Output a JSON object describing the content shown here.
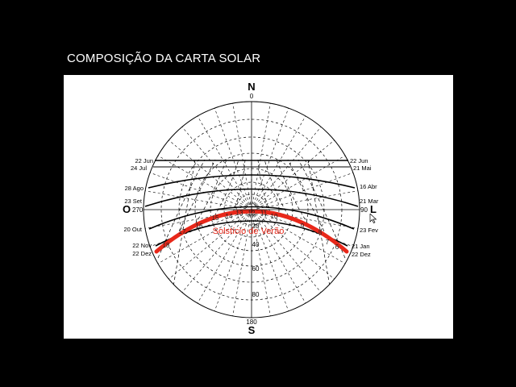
{
  "slide": {
    "title": "COMPOSIÇÃO DA CARTA SOLAR"
  },
  "diagram": {
    "cardinals": {
      "north": "N",
      "south": "S",
      "west": "O",
      "east": "L"
    },
    "degrees": {
      "north": "0",
      "south": "180",
      "west": "270",
      "east": "90"
    },
    "altitude_labels": [
      "20",
      "40",
      "60",
      "80"
    ],
    "left_dates": [
      "22 Jun",
      "24 Jul",
      "28 Ago",
      "23 Set",
      "20 Out",
      "22 Nov",
      "22 Dez"
    ],
    "right_dates": [
      "22 Jun",
      "21 Mai",
      "16 Abr",
      "21 Mar",
      "23 Fev",
      "21 Jan",
      "22 Dez"
    ],
    "hour_labels": [
      "18",
      "17",
      "16",
      "15",
      "14",
      "13",
      "12",
      "11",
      "10",
      "9",
      "8",
      "7",
      "6"
    ],
    "highlight_label": "Solstício de Verão",
    "colors": {
      "highlight": "#e8281a",
      "lines": "#000000",
      "dashed": "#000000"
    }
  }
}
